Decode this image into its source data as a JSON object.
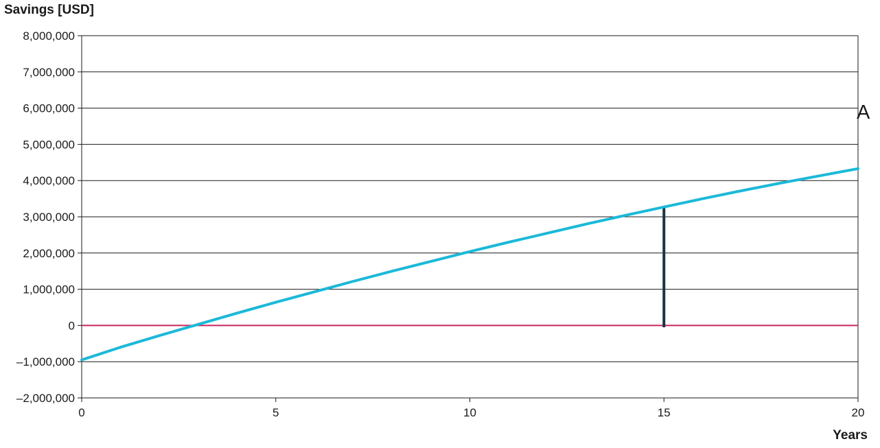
{
  "chart_data": {
    "type": "line",
    "ylabel": "Savings [USD]",
    "xlabel": "Years",
    "annotation_letter": "A",
    "xlim": [
      0,
      20
    ],
    "ylim": [
      -2000000,
      8000000
    ],
    "x_ticks": [
      0,
      5,
      10,
      15,
      20
    ],
    "x_tick_labels": [
      "0",
      "5",
      "10",
      "15",
      "20"
    ],
    "y_ticks": [
      -2000000,
      -1000000,
      0,
      1000000,
      2000000,
      3000000,
      4000000,
      5000000,
      6000000,
      7000000,
      8000000
    ],
    "y_tick_labels": [
      "–2,000,000",
      "–1,000,000",
      "0",
      "1,000,000",
      "2,000,000",
      "3,000,000",
      "4,000,000",
      "5,000,000",
      "6,000,000",
      "7,000,000",
      "8,000,000"
    ],
    "grid": "horizontal",
    "series": [
      {
        "color": "#1bb9d8",
        "x": [
          0,
          1,
          2,
          3,
          4,
          5,
          6,
          7,
          8,
          9,
          10,
          11,
          12,
          13,
          14,
          15,
          16,
          17,
          18,
          19,
          20
        ],
        "values": [
          -950000,
          -600000,
          -280000,
          30000,
          340000,
          640000,
          930000,
          1220000,
          1500000,
          1770000,
          2040000,
          2300000,
          2550000,
          2800000,
          3040000,
          3270000,
          3500000,
          3720000,
          3930000,
          4130000,
          4330000
        ]
      }
    ],
    "reference_lines": [
      {
        "orientation": "horizontal",
        "y": 0,
        "color": "#c8245a"
      },
      {
        "orientation": "vertical",
        "x": 15,
        "y_from": -50000,
        "y_to": 3270000,
        "color": "#1b3445"
      }
    ]
  }
}
